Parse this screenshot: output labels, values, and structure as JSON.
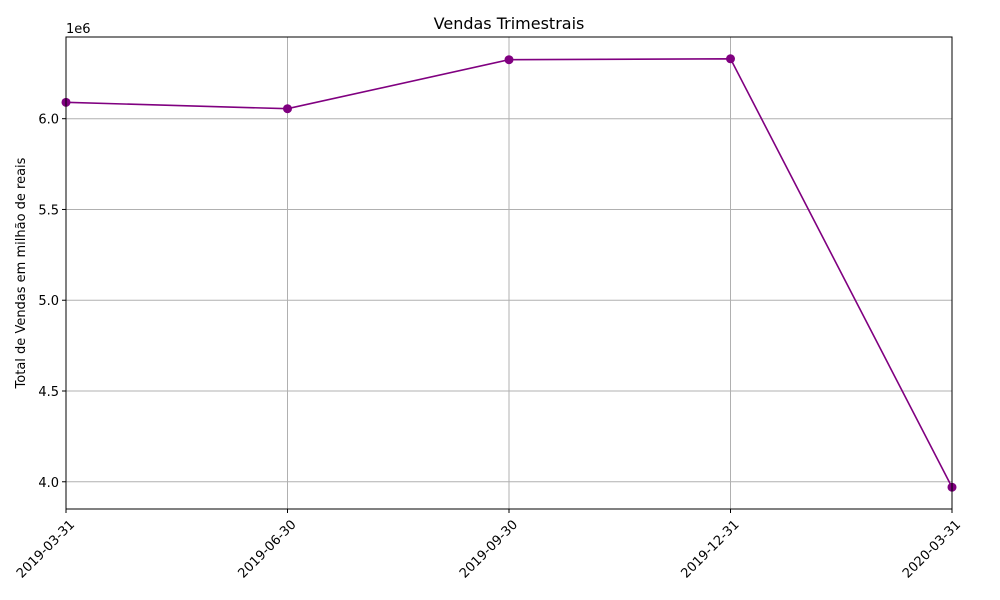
{
  "chart_data": {
    "type": "line",
    "title": "Vendas Trimestrais",
    "xlabel": "",
    "ylabel": "Total de Vendas em milhão de reais",
    "y_offset_label": "1e6",
    "x": [
      "2019-03-31",
      "2019-06-30",
      "2019-09-30",
      "2019-12-31",
      "2020-03-31"
    ],
    "series": [
      {
        "values": [
          6090000,
          6055000,
          6325000,
          6330000,
          3970000
        ],
        "color": "#800080",
        "marker": "circle"
      }
    ],
    "ylim": [
      3850000,
      6450000
    ],
    "yticks": [
      4000000,
      4500000,
      5000000,
      5500000,
      6000000
    ],
    "ytick_labels": [
      "4.0",
      "4.5",
      "5.0",
      "5.5",
      "6.0"
    ],
    "xtick_labels": [
      "2019-03-31",
      "2019-06-30",
      "2019-09-30",
      "2019-12-31",
      "2020-03-31"
    ],
    "grid": true,
    "legend": "none"
  }
}
